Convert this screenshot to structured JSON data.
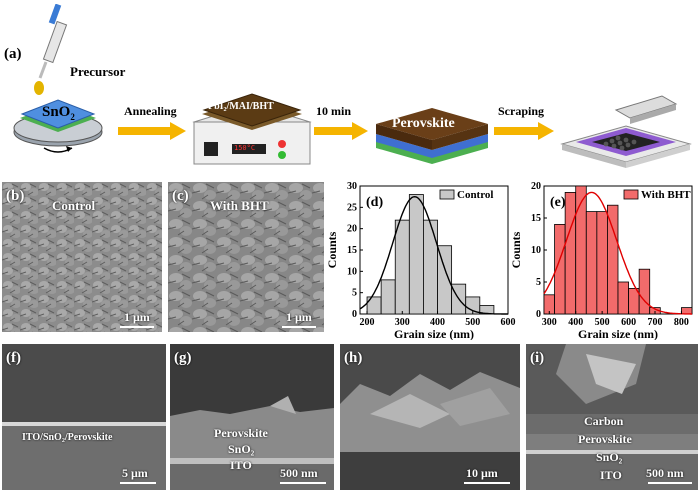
{
  "schematic": {
    "panel_label": "(a)",
    "precursor_label": "Precursor",
    "substrate_label_main": "SnO",
    "substrate_label_sub": "2",
    "steps": [
      "Annealing",
      "10 min",
      "Scraping"
    ],
    "hotplate_film_label": "PbI₂/MAI/BHT",
    "hotplate_display": "150°C",
    "perovskite_label": "Perovskite"
  },
  "sem_top": {
    "b": {
      "label": "(b)",
      "caption": "Control",
      "scale": "1 μm"
    },
    "c": {
      "label": "(c)",
      "caption": "With BHT",
      "scale": "1 μm"
    }
  },
  "sem_cross": {
    "f": {
      "label": "(f)",
      "layer_text": "ITO/SnO₂/Perovskite",
      "scale": "5 μm"
    },
    "g": {
      "label": "(g)",
      "layers": [
        "Perovskite",
        "SnO₂",
        "ITO"
      ],
      "scale": "500 nm"
    },
    "h": {
      "label": "(h)",
      "scale": "10 μm"
    },
    "i": {
      "label": "(i)",
      "layers": [
        "Carbon",
        "Perovskite",
        "SnO₂",
        "ITO"
      ],
      "scale": "500 nm"
    }
  },
  "chart_data": [
    {
      "type": "bar",
      "panel_label": "(d)",
      "legend": "Control",
      "color": "#c8c8c8",
      "xlabel": "Grain size (nm)",
      "ylabel": "Counts",
      "xlim": [
        180,
        600
      ],
      "ylim": [
        0,
        30
      ],
      "xticks": [
        200,
        300,
        400,
        500,
        600
      ],
      "yticks": [
        0,
        5,
        10,
        15,
        20,
        25,
        30
      ],
      "bins": [
        {
          "x0": 200,
          "x1": 240,
          "count": 4
        },
        {
          "x0": 240,
          "x1": 280,
          "count": 8
        },
        {
          "x0": 280,
          "x1": 320,
          "count": 22
        },
        {
          "x0": 320,
          "x1": 360,
          "count": 28
        },
        {
          "x0": 360,
          "x1": 400,
          "count": 22
        },
        {
          "x0": 400,
          "x1": 440,
          "count": 16
        },
        {
          "x0": 440,
          "x1": 480,
          "count": 7
        },
        {
          "x0": 480,
          "x1": 520,
          "count": 4
        },
        {
          "x0": 520,
          "x1": 560,
          "count": 2
        }
      ],
      "fit_curve": {
        "mean": 335,
        "sigma": 62,
        "amplitude": 27.5
      }
    },
    {
      "type": "bar",
      "panel_label": "(e)",
      "legend": "With BHT",
      "color": "#f26b6b",
      "xlabel": "Grain size (nm)",
      "ylabel": "Counts",
      "xlim": [
        280,
        840
      ],
      "ylim": [
        0,
        20
      ],
      "xticks": [
        300,
        400,
        500,
        600,
        700,
        800
      ],
      "yticks": [
        0,
        5,
        10,
        15,
        20
      ],
      "bins": [
        {
          "x0": 280,
          "x1": 320,
          "count": 3
        },
        {
          "x0": 320,
          "x1": 360,
          "count": 14
        },
        {
          "x0": 360,
          "x1": 400,
          "count": 19
        },
        {
          "x0": 400,
          "x1": 440,
          "count": 20
        },
        {
          "x0": 440,
          "x1": 480,
          "count": 16
        },
        {
          "x0": 480,
          "x1": 520,
          "count": 16
        },
        {
          "x0": 520,
          "x1": 560,
          "count": 17
        },
        {
          "x0": 560,
          "x1": 600,
          "count": 5
        },
        {
          "x0": 600,
          "x1": 640,
          "count": 4
        },
        {
          "x0": 640,
          "x1": 680,
          "count": 7
        },
        {
          "x0": 680,
          "x1": 720,
          "count": 1
        },
        {
          "x0": 800,
          "x1": 840,
          "count": 1
        }
      ],
      "fit_curve": {
        "mean": 460,
        "sigma": 95,
        "amplitude": 19
      }
    }
  ]
}
